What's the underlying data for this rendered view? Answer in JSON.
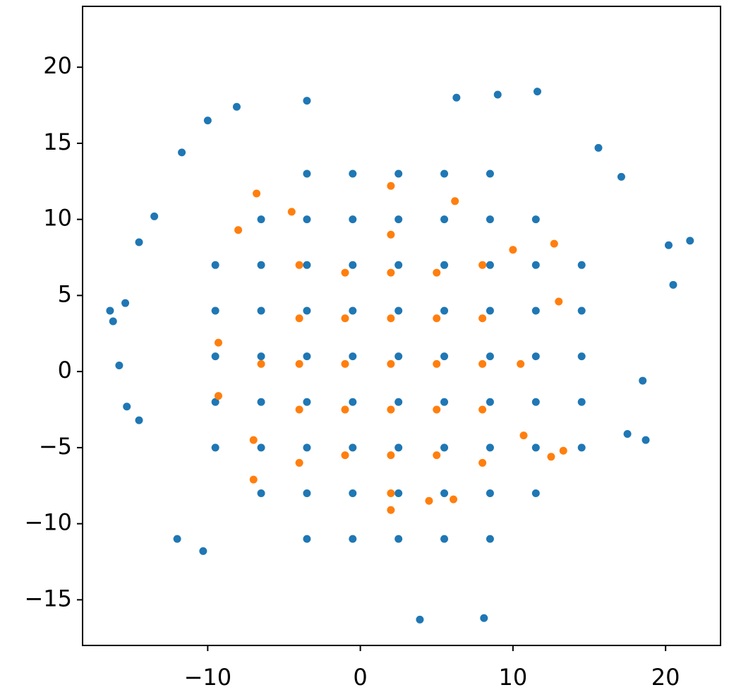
{
  "chart_data": {
    "type": "scatter",
    "xlim": [
      -18.2,
      23.6
    ],
    "ylim": [
      -18,
      24
    ],
    "xticks": [
      {
        "value": -10,
        "label": "−10"
      },
      0,
      10,
      20
    ],
    "yticks": [
      {
        "value": -15,
        "label": "−15"
      },
      {
        "value": -10,
        "label": "−10"
      },
      {
        "value": -5,
        "label": "−5"
      },
      0,
      5,
      10,
      15,
      20
    ],
    "grid": false,
    "series": [
      {
        "color": "#1f77b4",
        "x": [
          -3.5,
          -0.5,
          2.5,
          5.5,
          8.5,
          -6.5,
          -3.5,
          -0.5,
          2.5,
          5.5,
          8.5,
          11.5,
          -9.5,
          -6.5,
          -3.5,
          -0.5,
          2.5,
          5.5,
          8.5,
          11.5,
          14.5,
          -9.5,
          -6.5,
          -3.5,
          -0.5,
          2.5,
          5.5,
          8.5,
          11.5,
          14.5,
          -9.5,
          -6.5,
          -3.5,
          -0.5,
          2.5,
          5.5,
          8.5,
          11.5,
          14.5,
          -9.5,
          -6.5,
          -3.5,
          -0.5,
          2.5,
          5.5,
          8.5,
          11.5,
          14.5,
          -9.5,
          -6.5,
          -3.5,
          -0.5,
          2.5,
          5.5,
          8.5,
          11.5,
          14.5,
          -6.5,
          -3.5,
          -0.5,
          2.5,
          5.5,
          8.5,
          11.5,
          -3.5,
          -0.5,
          2.5,
          5.5,
          8.5,
          21.6,
          20.5,
          20.2,
          -16.4,
          -16.2,
          -15.4,
          -15.8,
          -15.3,
          -14.5,
          -12,
          -10.3,
          3.9,
          8.1,
          11.6,
          9,
          6.3,
          -3.5,
          -8.1,
          18.7,
          17.5,
          18.5,
          15.6,
          17.1,
          -10,
          -13.5,
          -11.7,
          -14.5
        ],
        "y": [
          13,
          13,
          13,
          13,
          13,
          10,
          10,
          10,
          10,
          10,
          10,
          10,
          7,
          7,
          7,
          7,
          7,
          7,
          7,
          7,
          7,
          4,
          4,
          4,
          4,
          4,
          4,
          4,
          4,
          4,
          1,
          1,
          1,
          1,
          1,
          1,
          1,
          1,
          1,
          -2,
          -2,
          -2,
          -2,
          -2,
          -2,
          -2,
          -2,
          -2,
          -5,
          -5,
          -5,
          -5,
          -5,
          -5,
          -5,
          -5,
          -5,
          -8,
          -8,
          -8,
          -8,
          -8,
          -8,
          -8,
          -11,
          -11,
          -11,
          -11,
          -11,
          8.6,
          5.7,
          8.3,
          4,
          3.3,
          4.5,
          0.4,
          -2.3,
          -3.2,
          -11,
          -11.8,
          -16.3,
          -16.2,
          18.4,
          18.2,
          18,
          17.8,
          17.4,
          -4.5,
          -4.1,
          -0.6,
          14.7,
          12.8,
          16.5,
          10.2,
          14.4,
          8.5
        ]
      },
      {
        "color": "#ff7f0e",
        "x": [
          -1,
          2,
          5,
          -4,
          -1,
          2,
          5,
          8,
          -4,
          -1,
          2,
          5,
          8,
          -4,
          -1,
          2,
          5,
          8,
          -1,
          2,
          5,
          2,
          8,
          10.5,
          8,
          2,
          -4,
          -6.5,
          -4,
          -6.8,
          2,
          6.2,
          -9.3,
          -9.3,
          13,
          12.7,
          13.3,
          12.5,
          -7,
          2,
          6.1,
          -8,
          10.7,
          4.5,
          -4.5,
          10,
          -7
        ],
        "y": [
          6.5,
          6.5,
          6.5,
          3.5,
          3.5,
          3.5,
          3.5,
          3.5,
          0.5,
          0.5,
          0.5,
          0.5,
          0.5,
          -2.5,
          -2.5,
          -2.5,
          -2.5,
          -2.5,
          -5.5,
          -5.5,
          -5.5,
          9,
          7,
          0.5,
          -6,
          -8,
          -6,
          0.5,
          7,
          11.7,
          12.2,
          11.2,
          1.9,
          -1.6,
          4.6,
          8.4,
          -5.2,
          -5.6,
          -7.1,
          -9.1,
          -8.4,
          9.3,
          -4.2,
          -8.5,
          10.5,
          8,
          -4.5
        ]
      }
    ]
  }
}
